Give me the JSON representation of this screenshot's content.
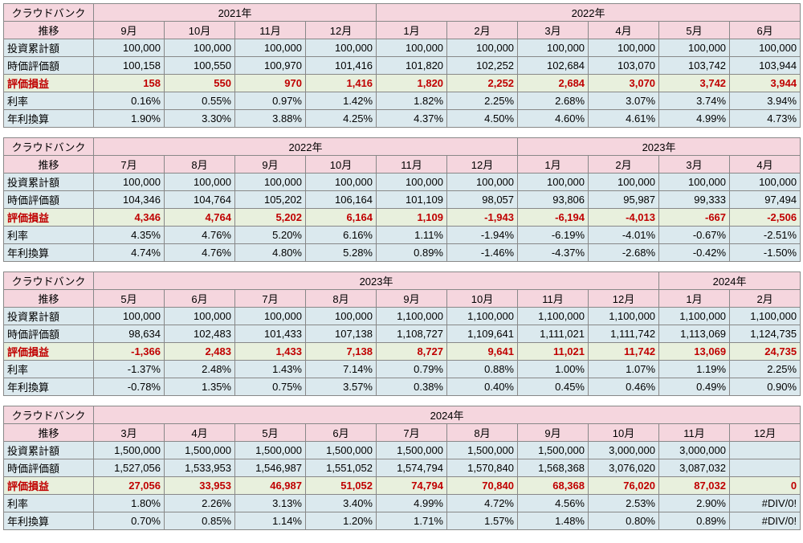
{
  "colors": {
    "header_bg": "#f5d6de",
    "blue_row_bg": "#dbe9ee",
    "green_row_bg": "#e8f0dd",
    "border": "#888888",
    "red_text": "#c00000"
  },
  "row_labels": {
    "title_top": "クラウドバンク",
    "title_bottom": "推移",
    "invest_total": "投資累計額",
    "market_value": "時価評価額",
    "profit_loss": "評価損益",
    "rate": "利率",
    "annualized": "年利換算"
  },
  "blocks": [
    {
      "year_groups": [
        {
          "label": "2021年",
          "span": 4
        },
        {
          "label": "2022年",
          "span": 6
        }
      ],
      "months": [
        "9月",
        "10月",
        "11月",
        "12月",
        "1月",
        "2月",
        "3月",
        "4月",
        "5月",
        "6月"
      ],
      "rows": {
        "invest_total": [
          "100,000",
          "100,000",
          "100,000",
          "100,000",
          "100,000",
          "100,000",
          "100,000",
          "100,000",
          "100,000",
          "100,000"
        ],
        "market_value": [
          "100,158",
          "100,550",
          "100,970",
          "101,416",
          "101,820",
          "102,252",
          "102,684",
          "103,070",
          "103,742",
          "103,944"
        ],
        "profit_loss": [
          "158",
          "550",
          "970",
          "1,416",
          "1,820",
          "2,252",
          "2,684",
          "3,070",
          "3,742",
          "3,944"
        ],
        "profit_loss_neg": [
          false,
          false,
          false,
          false,
          false,
          false,
          false,
          false,
          false,
          false
        ],
        "rate": [
          "0.16%",
          "0.55%",
          "0.97%",
          "1.42%",
          "1.82%",
          "2.25%",
          "2.68%",
          "3.07%",
          "3.74%",
          "3.94%"
        ],
        "annualized": [
          "1.90%",
          "3.30%",
          "3.88%",
          "4.25%",
          "4.37%",
          "4.50%",
          "4.60%",
          "4.61%",
          "4.99%",
          "4.73%"
        ]
      }
    },
    {
      "year_groups": [
        {
          "label": "2022年",
          "span": 6
        },
        {
          "label": "2023年",
          "span": 4
        }
      ],
      "months": [
        "7月",
        "8月",
        "9月",
        "10月",
        "11月",
        "12月",
        "1月",
        "2月",
        "3月",
        "4月"
      ],
      "rows": {
        "invest_total": [
          "100,000",
          "100,000",
          "100,000",
          "100,000",
          "100,000",
          "100,000",
          "100,000",
          "100,000",
          "100,000",
          "100,000"
        ],
        "market_value": [
          "104,346",
          "104,764",
          "105,202",
          "106,164",
          "101,109",
          "98,057",
          "93,806",
          "95,987",
          "99,333",
          "97,494"
        ],
        "profit_loss": [
          "4,346",
          "4,764",
          "5,202",
          "6,164",
          "1,109",
          "-1,943",
          "-6,194",
          "-4,013",
          "-667",
          "-2,506"
        ],
        "profit_loss_neg": [
          false,
          false,
          false,
          false,
          false,
          true,
          true,
          true,
          true,
          true
        ],
        "rate": [
          "4.35%",
          "4.76%",
          "5.20%",
          "6.16%",
          "1.11%",
          "-1.94%",
          "-6.19%",
          "-4.01%",
          "-0.67%",
          "-2.51%"
        ],
        "annualized": [
          "4.74%",
          "4.76%",
          "4.80%",
          "5.28%",
          "0.89%",
          "-1.46%",
          "-4.37%",
          "-2.68%",
          "-0.42%",
          "-1.50%"
        ]
      }
    },
    {
      "year_groups": [
        {
          "label": "2023年",
          "span": 8
        },
        {
          "label": "2024年",
          "span": 2
        }
      ],
      "months": [
        "5月",
        "6月",
        "7月",
        "8月",
        "9月",
        "10月",
        "11月",
        "12月",
        "1月",
        "2月"
      ],
      "rows": {
        "invest_total": [
          "100,000",
          "100,000",
          "100,000",
          "100,000",
          "1,100,000",
          "1,100,000",
          "1,100,000",
          "1,100,000",
          "1,100,000",
          "1,100,000"
        ],
        "market_value": [
          "98,634",
          "102,483",
          "101,433",
          "107,138",
          "1,108,727",
          "1,109,641",
          "1,111,021",
          "1,111,742",
          "1,113,069",
          "1,124,735"
        ],
        "profit_loss": [
          "-1,366",
          "2,483",
          "1,433",
          "7,138",
          "8,727",
          "9,641",
          "11,021",
          "11,742",
          "13,069",
          "24,735"
        ],
        "profit_loss_neg": [
          true,
          false,
          false,
          false,
          false,
          false,
          false,
          false,
          false,
          false
        ],
        "rate": [
          "-1.37%",
          "2.48%",
          "1.43%",
          "7.14%",
          "0.79%",
          "0.88%",
          "1.00%",
          "1.07%",
          "1.19%",
          "2.25%"
        ],
        "annualized": [
          "-0.78%",
          "1.35%",
          "0.75%",
          "3.57%",
          "0.38%",
          "0.40%",
          "0.45%",
          "0.46%",
          "0.49%",
          "0.90%"
        ]
      }
    },
    {
      "year_groups": [
        {
          "label": "2024年",
          "span": 10
        }
      ],
      "months": [
        "3月",
        "4月",
        "5月",
        "6月",
        "7月",
        "8月",
        "9月",
        "10月",
        "11月",
        "12月"
      ],
      "rows": {
        "invest_total": [
          "1,500,000",
          "1,500,000",
          "1,500,000",
          "1,500,000",
          "1,500,000",
          "1,500,000",
          "1,500,000",
          "3,000,000",
          "3,000,000",
          ""
        ],
        "market_value": [
          "1,527,056",
          "1,533,953",
          "1,546,987",
          "1,551,052",
          "1,574,794",
          "1,570,840",
          "1,568,368",
          "3,076,020",
          "3,087,032",
          ""
        ],
        "profit_loss": [
          "27,056",
          "33,953",
          "46,987",
          "51,052",
          "74,794",
          "70,840",
          "68,368",
          "76,020",
          "87,032",
          "0"
        ],
        "profit_loss_neg": [
          false,
          false,
          false,
          false,
          false,
          false,
          false,
          false,
          false,
          false
        ],
        "rate": [
          "1.80%",
          "2.26%",
          "3.13%",
          "3.40%",
          "4.99%",
          "4.72%",
          "4.56%",
          "2.53%",
          "2.90%",
          "#DIV/0!"
        ],
        "annualized": [
          "0.70%",
          "0.85%",
          "1.14%",
          "1.20%",
          "1.71%",
          "1.57%",
          "1.48%",
          "0.80%",
          "0.89%",
          "#DIV/0!"
        ]
      }
    }
  ]
}
